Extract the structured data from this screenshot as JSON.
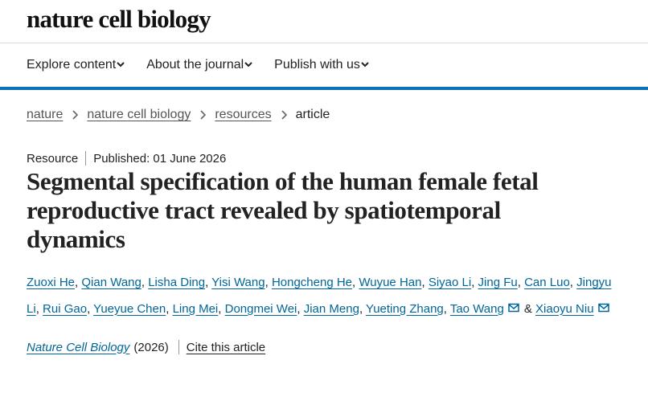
{
  "header": {
    "logo": "nature cell biology"
  },
  "nav": {
    "items": [
      "Explore content",
      "About the journal",
      "Publish with us"
    ]
  },
  "breadcrumbs": [
    "nature",
    "nature cell biology",
    "resources",
    "article"
  ],
  "article": {
    "type": "Resource",
    "published": "Published: 01 June 2026",
    "title": "Segmental specification of the human female fetal reproductive tract revealed by spatiotemporal dynamics",
    "authors": [
      {
        "name": "Zuoxi He",
        "suffix": ","
      },
      {
        "name": "Qian Wang",
        "suffix": ","
      },
      {
        "name": "Lisha Ding",
        "suffix": ","
      },
      {
        "name": "Yisi Wang",
        "suffix": ","
      },
      {
        "name": "Hongcheng He",
        "suffix": ","
      },
      {
        "name": "Wuyue Han",
        "suffix": ","
      },
      {
        "name": "Siyao Li",
        "suffix": ","
      },
      {
        "name": "Jing Fu",
        "suffix": ","
      },
      {
        "name": "Can Luo",
        "suffix": ","
      },
      {
        "name": "Jingyu Li",
        "suffix": ","
      },
      {
        "name": "Rui Gao",
        "suffix": ","
      },
      {
        "name": "Yueyue Chen",
        "suffix": ","
      },
      {
        "name": "Ling Mei",
        "suffix": ","
      },
      {
        "name": "Dongmei Wei",
        "suffix": ","
      },
      {
        "name": "Jian Meng",
        "suffix": ","
      },
      {
        "name": "Yueting Zhang",
        "suffix": ","
      },
      {
        "name": "Tao Wang",
        "suffix": "&",
        "corresponding": true
      },
      {
        "name": "Xiaoyu Niu",
        "corresponding": true
      }
    ],
    "citation": {
      "journal": "Nature Cell Biology",
      "year": "(2026)",
      "cite_link": "Cite this article"
    }
  }
}
